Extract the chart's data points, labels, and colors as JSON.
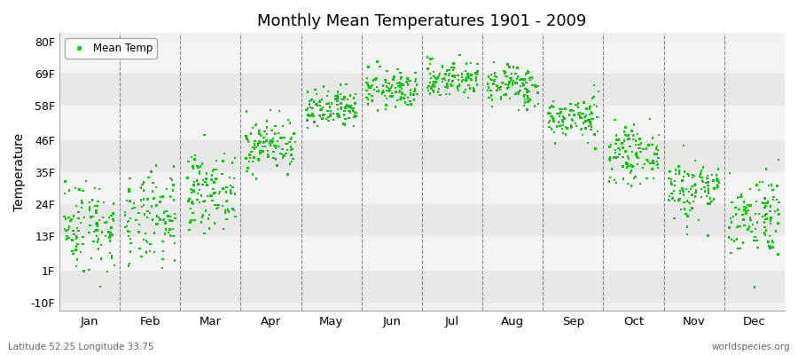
{
  "title": "Monthly Mean Temperatures 1901 - 2009",
  "ylabel": "Temperature",
  "xlabel_months": [
    "Jan",
    "Feb",
    "Mar",
    "Apr",
    "May",
    "Jun",
    "Jul",
    "Aug",
    "Sep",
    "Oct",
    "Nov",
    "Dec"
  ],
  "yticks": [
    -10,
    1,
    13,
    24,
    35,
    46,
    58,
    69,
    80
  ],
  "ytick_labels": [
    "-10F",
    "1F",
    "13F",
    "24F",
    "35F",
    "46F",
    "58F",
    "69F",
    "80F"
  ],
  "ylim": [
    -13,
    83
  ],
  "legend_label": "Mean Temp",
  "dot_color": "#00cc00",
  "dot_size": 3,
  "subtitle": "Latitude 52.25 Longitude 33.75",
  "watermark": "worldspecies.org",
  "fig_bg_color": "#ffffff",
  "plot_bg_color": "#f0f0f0",
  "band_colors": [
    "#e8e8e8",
    "#f4f4f4"
  ],
  "num_years": 109,
  "monthly_means_C": [
    -8.5,
    -7.8,
    -2.0,
    7.0,
    13.5,
    17.5,
    19.5,
    18.2,
    12.0,
    5.0,
    -1.5,
    -6.5
  ],
  "monthly_stds_C": [
    4.5,
    4.5,
    3.5,
    2.5,
    2.0,
    1.8,
    1.8,
    2.0,
    2.0,
    2.5,
    3.0,
    4.0
  ],
  "seed": 42,
  "fig_width": 9.0,
  "fig_height": 4.0,
  "dpi": 100
}
